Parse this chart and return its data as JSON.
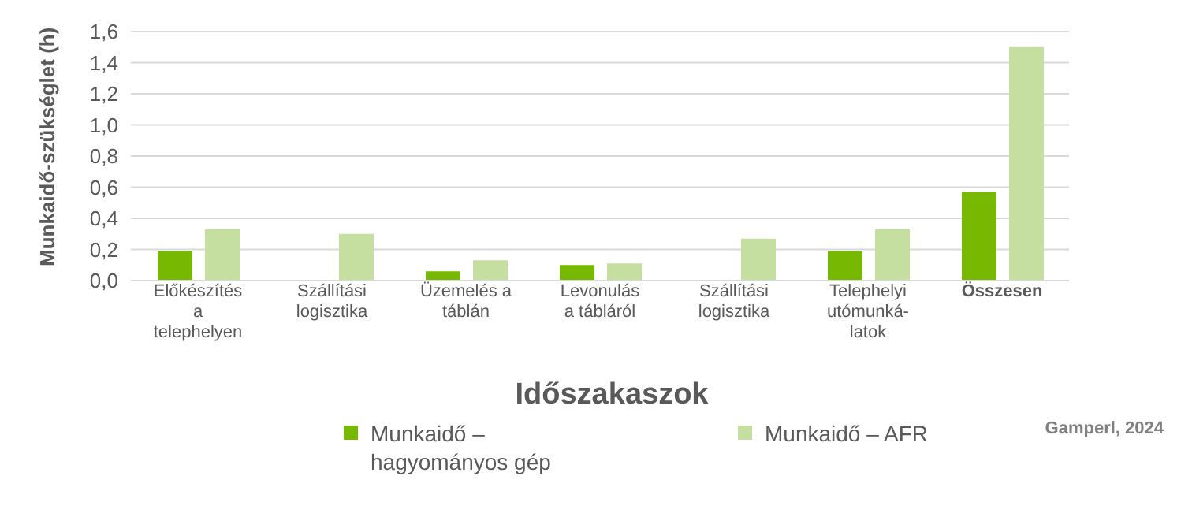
{
  "chart_data": {
    "type": "bar",
    "xlabel": "Időszakaszok",
    "ylabel": "Munkaidő-szükséglet (h)",
    "categories": [
      "Előkészítés\na\ntelephelyen",
      "Szállítási\nlogisztika",
      "Üzemelés a\ntáblán",
      "Levonulás\na tábláról",
      "Szállítási\nlogisztika",
      "Telephelyi\nutómunká-\nlatok",
      "Összesen"
    ],
    "series": [
      {
        "name": "Munkaidő –\nhagyományos gép",
        "color": "#76b900",
        "values": [
          0.19,
          null,
          0.06,
          0.1,
          null,
          0.19,
          0.57
        ]
      },
      {
        "name": "Munkaidő – AFR",
        "color": "#c5dfa0",
        "values": [
          0.33,
          0.3,
          0.13,
          0.11,
          0.27,
          0.33,
          1.5
        ]
      }
    ],
    "ylim": [
      0,
      1.6
    ],
    "yticks": [
      {
        "value": 0,
        "label": "0,0"
      },
      {
        "value": 0.2,
        "label": "0,2"
      },
      {
        "value": 0.4,
        "label": "0,4"
      },
      {
        "value": 0.6,
        "label": "0,6"
      },
      {
        "value": 0.8,
        "label": "0,8"
      },
      {
        "value": 1.0,
        "label": "1,0"
      },
      {
        "value": 1.2,
        "label": "1,2"
      },
      {
        "value": 1.4,
        "label": "1,4"
      },
      {
        "value": 1.6,
        "label": "1,6"
      }
    ],
    "grid": "y",
    "legend": "bottom",
    "annotations": [
      "Gamperl, 2024"
    ]
  }
}
